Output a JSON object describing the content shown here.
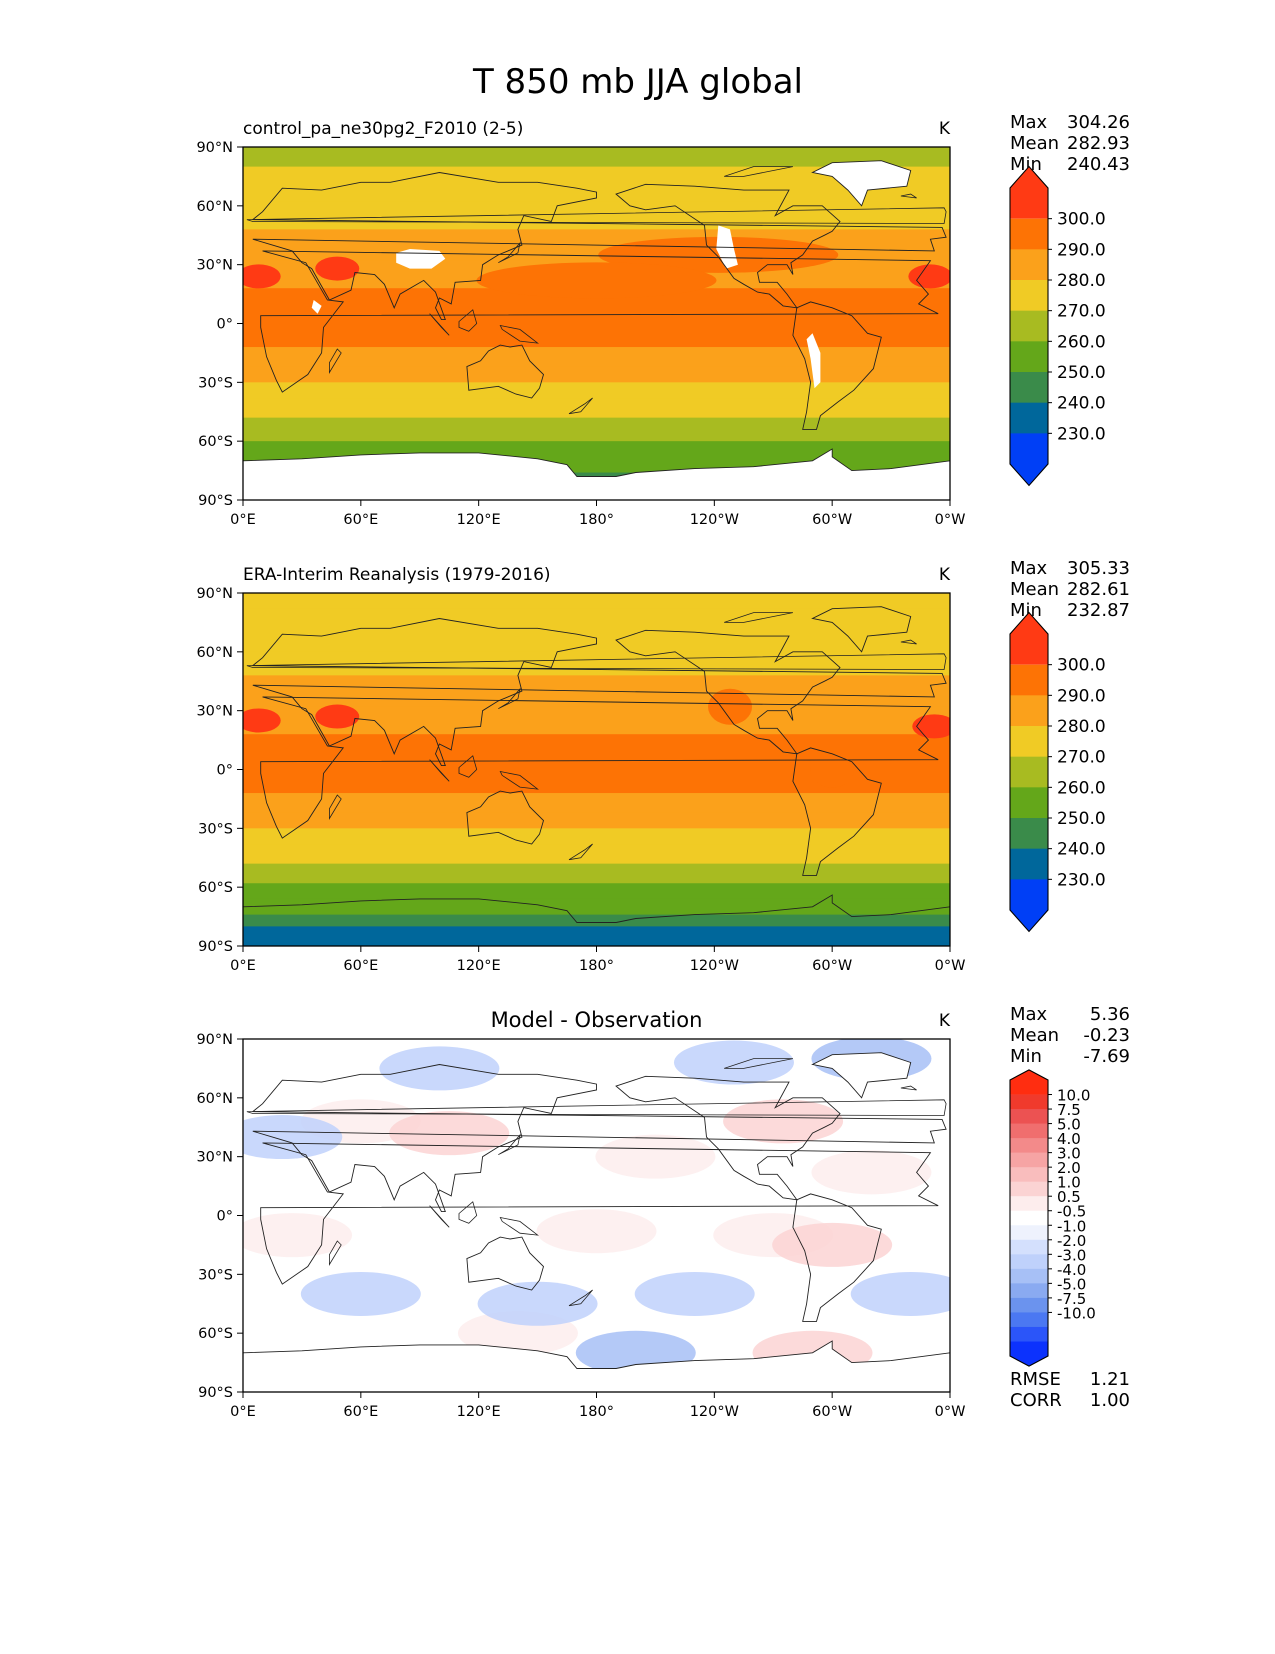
{
  "page_title": "T 850 mb JJA global",
  "colors": {
    "abs_levels": [
      "#003ff6",
      "#00679b",
      "#3a8b4a",
      "#64a71a",
      "#a8bb21",
      "#f0cb25",
      "#fba11b",
      "#fd7305",
      "#ff3a14"
    ],
    "diff_levels": [
      "#0c32fd",
      "#2b55f9",
      "#4b78f2",
      "#6b93ee",
      "#8aaaf1",
      "#a7c0f6",
      "#bfd1fb",
      "#d4e0fd",
      "#eef2fd",
      "#ffffff",
      "#fdeded",
      "#fbd3d3",
      "#f9bdbd",
      "#f6a4a4",
      "#f38a8a",
      "#f06e6e",
      "#ec5252",
      "#f03a2c",
      "#ff2d10"
    ],
    "land_mask": "#ffffff",
    "coast": "#222222"
  },
  "chart_data": [
    {
      "type": "heatmap",
      "title": "control_pa_ne30pg2_F2010 (2-5)",
      "units": "K",
      "stats": {
        "max_label": "Max",
        "max": "304.26",
        "mean_label": "Mean",
        "mean": "282.93",
        "min_label": "Min",
        "min": "240.43"
      },
      "xticks": [
        "0°E",
        "60°E",
        "120°E",
        "180°",
        "120°W",
        "60°W",
        "0°W"
      ],
      "yticks": [
        "90°N",
        "60°N",
        "30°N",
        "0°",
        "30°S",
        "60°S",
        "90°S"
      ],
      "xlim": [
        0,
        360
      ],
      "ylim": [
        -90,
        90
      ],
      "colorbar_labels": [
        "300.0",
        "290.0",
        "280.0",
        "270.0",
        "260.0",
        "250.0",
        "240.0",
        "230.0"
      ],
      "colorbar_levels": [
        230,
        240,
        250,
        260,
        270,
        280,
        290,
        300
      ],
      "bands": [
        {
          "lat": 90,
          "value": 265
        },
        {
          "lat": 80,
          "value": 272
        },
        {
          "lat": 62,
          "value": 276
        },
        {
          "lat": 48,
          "value": 283
        },
        {
          "lat": 32,
          "value": 286
        },
        {
          "lat": 18,
          "value": 292
        },
        {
          "lat": 0,
          "value": 291
        },
        {
          "lat": -12,
          "value": 289
        },
        {
          "lat": -22,
          "value": 283
        },
        {
          "lat": -30,
          "value": 278
        },
        {
          "lat": -38,
          "value": 272
        },
        {
          "lat": -48,
          "value": 265
        },
        {
          "lat": -60,
          "value": 258
        },
        {
          "lat": -70,
          "value": 252
        },
        {
          "lat": -76,
          "value": 245
        },
        {
          "lat": -90,
          "value": 240
        }
      ],
      "hotspots": [
        {
          "lon": 8,
          "lat": 24,
          "value": 301
        },
        {
          "lon": 48,
          "lat": 28,
          "value": 302
        },
        {
          "lon": 350,
          "lat": 24,
          "value": 301
        },
        {
          "lon": 242,
          "lat": 35,
          "value": 292
        },
        {
          "lon": 180,
          "lat": 22,
          "value": 290
        }
      ],
      "masks": [
        "tibet",
        "rockies",
        "andes",
        "greenland",
        "antarctica",
        "africa_highlands"
      ]
    },
    {
      "type": "heatmap",
      "title": "ERA-Interim Reanalysis (1979-2016)",
      "units": "K",
      "stats": {
        "max_label": "Max",
        "max": "305.33",
        "mean_label": "Mean",
        "mean": "282.61",
        "min_label": "Min",
        "min": "232.87"
      },
      "xticks": [
        "0°E",
        "60°E",
        "120°E",
        "180°",
        "120°W",
        "60°W",
        "0°W"
      ],
      "yticks": [
        "90°N",
        "60°N",
        "30°N",
        "0°",
        "30°S",
        "60°S",
        "90°S"
      ],
      "xlim": [
        0,
        360
      ],
      "ylim": [
        -90,
        90
      ],
      "colorbar_labels": [
        "300.0",
        "290.0",
        "280.0",
        "270.0",
        "260.0",
        "250.0",
        "240.0",
        "230.0"
      ],
      "colorbar_levels": [
        230,
        240,
        250,
        260,
        270,
        280,
        290,
        300
      ],
      "bands": [
        {
          "lat": 90,
          "value": 272
        },
        {
          "lat": 82,
          "value": 274
        },
        {
          "lat": 60,
          "value": 277
        },
        {
          "lat": 48,
          "value": 284
        },
        {
          "lat": 32,
          "value": 287
        },
        {
          "lat": 18,
          "value": 291
        },
        {
          "lat": 0,
          "value": 290
        },
        {
          "lat": -12,
          "value": 287
        },
        {
          "lat": -22,
          "value": 281
        },
        {
          "lat": -30,
          "value": 277
        },
        {
          "lat": -38,
          "value": 272
        },
        {
          "lat": -48,
          "value": 265
        },
        {
          "lat": -58,
          "value": 258
        },
        {
          "lat": -66,
          "value": 252
        },
        {
          "lat": -74,
          "value": 246
        },
        {
          "lat": -80,
          "value": 238
        },
        {
          "lat": -90,
          "value": 236
        }
      ],
      "hotspots": [
        {
          "lon": 8,
          "lat": 25,
          "value": 301
        },
        {
          "lon": 48,
          "lat": 27,
          "value": 302
        },
        {
          "lon": 352,
          "lat": 22,
          "value": 301
        },
        {
          "lon": 248,
          "lat": 32,
          "value": 292
        },
        {
          "lon": 300,
          "lat": 0,
          "value": 291
        }
      ],
      "masks": []
    },
    {
      "type": "heatmap",
      "title": "Model - Observation",
      "units": "K",
      "stats": {
        "max_label": "Max",
        "max": "5.36",
        "mean_label": "Mean",
        "mean": "-0.23",
        "min_label": "Min",
        "min": "-7.69"
      },
      "extra_stats": {
        "rmse_label": "RMSE",
        "rmse": "1.21",
        "corr_label": "CORR",
        "corr": "1.00"
      },
      "xticks": [
        "0°E",
        "60°E",
        "120°E",
        "180°",
        "120°W",
        "60°W",
        "0°W"
      ],
      "yticks": [
        "90°N",
        "60°N",
        "30°N",
        "0°",
        "30°S",
        "60°S",
        "90°S"
      ],
      "xlim": [
        0,
        360
      ],
      "ylim": [
        -90,
        90
      ],
      "colorbar_labels": [
        "10.0",
        "7.5",
        "5.0",
        "4.0",
        "3.0",
        "2.0",
        "1.0",
        "0.5",
        "-0.5",
        "-1.0",
        "-2.0",
        "-3.0",
        "-4.0",
        "-5.0",
        "-7.5",
        "-10.0"
      ],
      "colorbar_levels": [
        -10,
        -7.5,
        -5,
        -4,
        -3,
        -2,
        -1,
        -0.5,
        0.5,
        1,
        2,
        3,
        4,
        5,
        7.5,
        10
      ],
      "blobs": [
        {
          "lon": 60,
          "lat": 48,
          "value": 1.5
        },
        {
          "lon": 105,
          "lat": 42,
          "value": 2.0
        },
        {
          "lon": 275,
          "lat": 48,
          "value": 2.5
        },
        {
          "lon": 210,
          "lat": 30,
          "value": 1.5
        },
        {
          "lon": 320,
          "lat": 22,
          "value": 1.5
        },
        {
          "lon": 25,
          "lat": -10,
          "value": 1.5
        },
        {
          "lon": 180,
          "lat": -8,
          "value": 1.0
        },
        {
          "lon": 270,
          "lat": -10,
          "value": 1.5
        },
        {
          "lon": 300,
          "lat": -15,
          "value": 2.0
        },
        {
          "lon": 140,
          "lat": -60,
          "value": 1.0
        },
        {
          "lon": 290,
          "lat": -70,
          "value": 2.0
        },
        {
          "lon": 100,
          "lat": 75,
          "value": -2.0
        },
        {
          "lon": 250,
          "lat": 78,
          "value": -2.0
        },
        {
          "lon": 320,
          "lat": 80,
          "value": -2.5
        },
        {
          "lon": 60,
          "lat": -40,
          "value": -2.0
        },
        {
          "lon": 150,
          "lat": -45,
          "value": -1.5
        },
        {
          "lon": 230,
          "lat": -40,
          "value": -2.0
        },
        {
          "lon": 340,
          "lat": -40,
          "value": -2.0
        },
        {
          "lon": 20,
          "lat": 40,
          "value": -1.5
        },
        {
          "lon": 200,
          "lat": -70,
          "value": -3.0
        }
      ],
      "masks": [
        "greenland",
        "antarctica"
      ]
    }
  ]
}
